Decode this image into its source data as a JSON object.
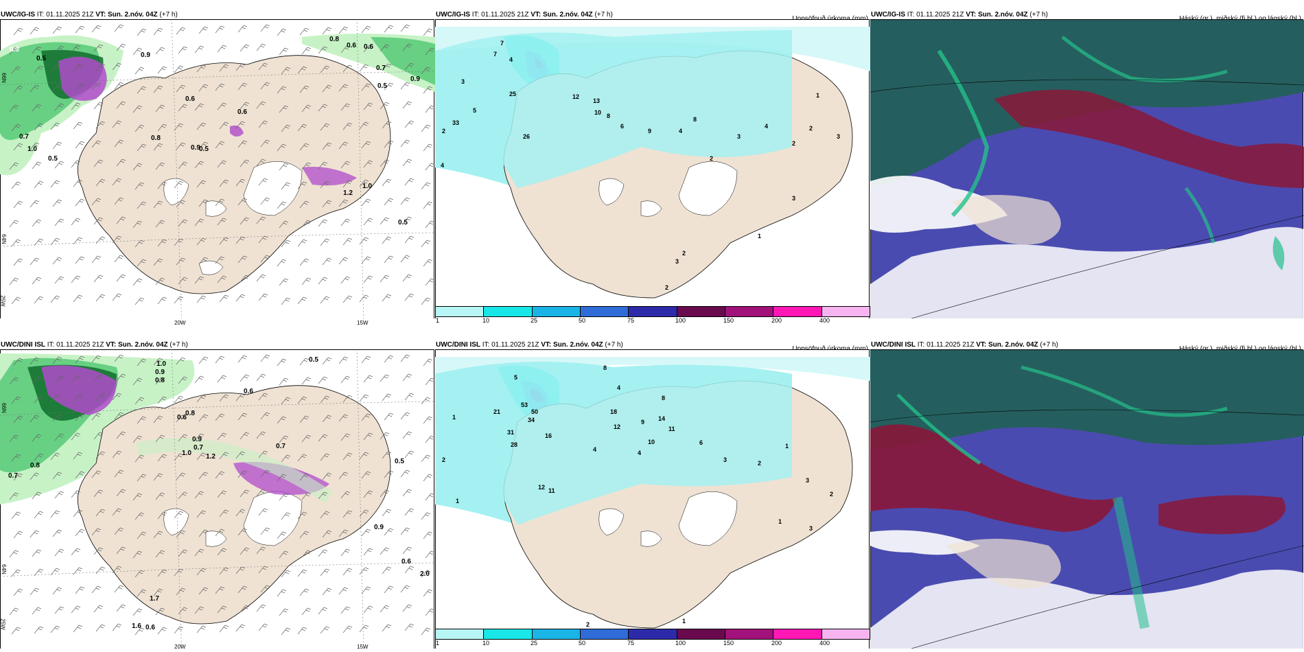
{
  "rows": [
    {
      "model": "UWC/IG-IS",
      "it_label": "IT:",
      "it_value": "01.11.2025 21Z",
      "vt_label": "VT:",
      "vt_value": "Sun. 2.nóv. 04Z",
      "lead": "(+7 h)"
    },
    {
      "model": "UWC/DINI ISL",
      "it_label": "IT:",
      "it_value": "01.11.2025 21Z",
      "vt_label": "VT:",
      "vt_value": "Sun. 2.nóv. 04Z",
      "lead": "(+7 h)"
    }
  ],
  "panel_titles": {
    "precip": "Uppsöfnuð úrkoma (mm)",
    "cloud": "Háský (gr.), miðský (fj.bl.) og lágský (bl.)"
  },
  "axis_labels": {
    "lon_20w": "20W",
    "lon_15w": "15W",
    "lon_25w": "25W",
    "lat_66n": "66N",
    "lat_64n": "64N"
  },
  "colorbar": {
    "ticks": [
      "1",
      "10",
      "25",
      "50",
      "75",
      "100",
      "150",
      "200",
      "400"
    ],
    "colors": [
      "#b8f5f5",
      "#19e6e6",
      "#1ab4e6",
      "#2f6cd8",
      "#2c2aa8",
      "#6a0a4e",
      "#a1127a",
      "#ff18b4",
      "#f7b4f0"
    ]
  },
  "colors": {
    "land": "#efe2d3",
    "sea": "#ffffff",
    "light_green": "#c7f2c6",
    "green": "#4fc772",
    "dark_green": "#106d2d",
    "purple": "#b04bcb",
    "cyan": "#a5f1f1",
    "cloud_dark": "#255e5e",
    "cloud_blue": "#4a4bb0",
    "cloud_red": "#8a1738",
    "cloud_teal": "#23c08a"
  },
  "ig_wind_values": [
    "0.3",
    "0.5",
    "0.9",
    "0.7",
    "1.0",
    "0.8",
    "0.5",
    "0.6",
    "0.6",
    "0.9",
    "0.5",
    "1.2",
    "1.0",
    "0.5",
    "0.6",
    "0.7",
    "0.5",
    "0.9",
    "0.6",
    "0.8"
  ],
  "ig_precip_values": [
    "7",
    "7",
    "4",
    "3",
    "5",
    "25",
    "33",
    "26",
    "2",
    "4",
    "12",
    "13",
    "10",
    "8",
    "6",
    "9",
    "4",
    "8",
    "2",
    "3",
    "4",
    "2",
    "2",
    "3",
    "1",
    "3",
    "2",
    "3",
    "1",
    "2"
  ],
  "dini_wind_values": [
    "1.0",
    "0.9",
    "0.8",
    "0.5",
    "0.6",
    "0.8",
    "0.9",
    "0.7",
    "1.2",
    "1.0",
    "0.7",
    "0.6",
    "0.8",
    "0.7",
    "0.5",
    "0.9",
    "0.6",
    "2.0",
    "1.7",
    "0.6",
    "1.6"
  ],
  "dini_precip_values": [
    "8",
    "5",
    "4",
    "1",
    "2",
    "21",
    "31",
    "28",
    "53",
    "50",
    "34",
    "16",
    "18",
    "12",
    "4",
    "9",
    "10",
    "11",
    "14",
    "8",
    "6",
    "4",
    "3",
    "2",
    "1",
    "3",
    "2",
    "1",
    "3",
    "12",
    "11",
    "1",
    "1",
    "2"
  ]
}
